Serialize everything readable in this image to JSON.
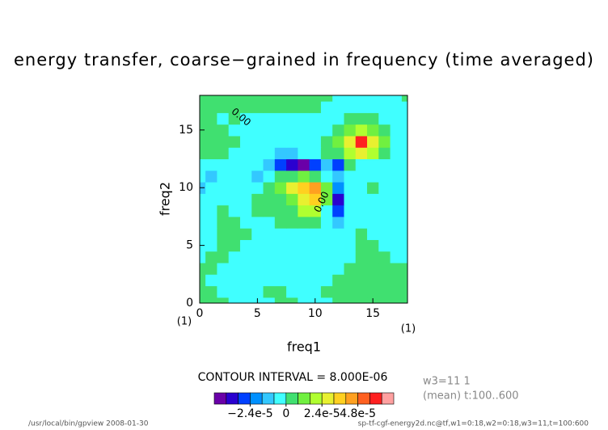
{
  "chart_data": {
    "type": "contour",
    "title": "energy transfer, coarse−grained in frequency (time averaged)",
    "xlabel": "freq1",
    "ylabel": "freq2",
    "x_units": "(1)",
    "y_units": "(1)",
    "x": [
      0,
      1,
      2,
      3,
      4,
      5,
      6,
      7,
      8,
      9,
      10,
      11,
      12,
      13,
      14,
      15,
      16,
      17,
      18
    ],
    "y": [
      0,
      1,
      2,
      3,
      4,
      5,
      6,
      7,
      8,
      9,
      10,
      11,
      12,
      13,
      14,
      15,
      16,
      17,
      18
    ],
    "xlim": [
      0,
      18
    ],
    "ylim": [
      0,
      18
    ],
    "xticks": [
      0,
      5,
      10,
      15
    ],
    "yticks": [
      0,
      5,
      10,
      15
    ],
    "z": [
      [
        4e-06,
        4e-06,
        4e-06,
        -4e-06,
        -4e-06,
        -4e-06,
        -4e-06,
        4e-06,
        4e-06,
        -4e-06,
        -4e-06,
        -4e-06,
        4e-06,
        4e-06,
        4e-06,
        4e-06,
        4e-06,
        4e-06,
        4e-06
      ],
      [
        4e-06,
        4e-06,
        -4e-06,
        -4e-06,
        -4e-06,
        -4e-06,
        4e-06,
        4e-06,
        -4e-06,
        -4e-06,
        -4e-06,
        4e-06,
        4e-06,
        4e-06,
        4e-06,
        4e-06,
        4e-06,
        4e-06,
        4e-06
      ],
      [
        4e-06,
        -4e-06,
        -4e-06,
        -4e-06,
        -4e-06,
        -4e-06,
        -4e-06,
        -4e-06,
        -4e-06,
        -4e-06,
        -4e-06,
        -4e-06,
        4e-06,
        4e-06,
        4e-06,
        4e-06,
        4e-06,
        4e-06,
        4e-06
      ],
      [
        4e-06,
        4e-06,
        -4e-06,
        -4e-06,
        -4e-06,
        -4e-06,
        -4e-06,
        -4e-06,
        -4e-06,
        -4e-06,
        -4e-06,
        -4e-06,
        -4e-06,
        4e-06,
        4e-06,
        4e-06,
        4e-06,
        4e-06,
        4e-06
      ],
      [
        -4e-06,
        4e-06,
        4e-06,
        -4e-06,
        -4e-06,
        -4e-06,
        -4e-06,
        -4e-06,
        -4e-06,
        -4e-06,
        -4e-06,
        -4e-06,
        -4e-06,
        -4e-06,
        4e-06,
        4e-06,
        4e-06,
        -4e-06,
        -4e-06
      ],
      [
        -4e-06,
        -4e-06,
        4e-06,
        4e-06,
        -4e-06,
        -4e-06,
        -4e-06,
        -4e-06,
        -4e-06,
        -4e-06,
        -4e-06,
        -4e-06,
        -4e-06,
        -4e-06,
        4e-06,
        4e-06,
        -4e-06,
        -4e-06,
        -4e-06
      ],
      [
        -4e-06,
        -4e-06,
        4e-06,
        4e-06,
        4e-06,
        -4e-06,
        -4e-06,
        -4e-06,
        -4e-06,
        -4e-06,
        -4e-06,
        -4e-06,
        -4e-06,
        -4e-06,
        4e-06,
        -4e-06,
        -4e-06,
        -4e-06,
        -4e-06
      ],
      [
        -4e-06,
        -4e-06,
        4e-06,
        4e-06,
        -4e-06,
        -4e-06,
        -4e-06,
        4e-06,
        4e-06,
        4e-06,
        4e-06,
        -4e-06,
        -1.2e-05,
        -4e-06,
        -4e-06,
        -4e-06,
        -4e-06,
        -4e-06,
        -4e-06
      ],
      [
        -4e-06,
        -4e-06,
        4e-06,
        -4e-06,
        -4e-06,
        4e-06,
        4e-06,
        4e-06,
        4e-06,
        2e-05,
        2.2e-05,
        -4e-06,
        -2.8e-05,
        -4e-06,
        -4e-06,
        -4e-06,
        -4e-06,
        -4e-06,
        -4e-06
      ],
      [
        -4e-06,
        -4e-06,
        -4e-06,
        -4e-06,
        -4e-06,
        4e-06,
        4e-06,
        4e-06,
        1.4e-05,
        3e-05,
        3.8e-05,
        1e-05,
        -3.6e-05,
        -4e-06,
        -4e-06,
        -4e-06,
        -4e-06,
        -4e-06,
        -4e-06
      ],
      [
        -1.2e-05,
        -4e-06,
        -4e-06,
        -4e-06,
        -4e-06,
        -4e-06,
        4e-06,
        1.2e-05,
        2.8e-05,
        3.5e-05,
        4.4e-05,
        1.2e-05,
        -2e-05,
        -4e-06,
        -4e-06,
        4e-06,
        -4e-06,
        -4e-06,
        -4e-06
      ],
      [
        -4e-06,
        -1.2e-05,
        -4e-06,
        -4e-06,
        -4e-06,
        -1.2e-05,
        -4e-06,
        4e-06,
        4e-06,
        1.2e-05,
        4e-06,
        -4e-06,
        -1.6e-05,
        -4e-06,
        -4e-06,
        -4e-06,
        -4e-06,
        -4e-06,
        -4e-06
      ],
      [
        -4e-06,
        -4e-06,
        -4e-06,
        -4e-06,
        -4e-06,
        -4e-06,
        -1.2e-05,
        -2.8e-05,
        -3.6e-05,
        -4.2e-05,
        -2.8e-05,
        -1.2e-05,
        -3e-05,
        4e-06,
        -4e-06,
        -4e-06,
        -4e-06,
        -4e-06,
        -4e-06
      ],
      [
        4e-06,
        4e-06,
        4e-06,
        -4e-06,
        -4e-06,
        -4e-06,
        -4e-06,
        -1.2e-05,
        -1.2e-05,
        -4e-06,
        -4e-06,
        4e-06,
        4e-06,
        2.2e-05,
        3e-05,
        1.6e-05,
        4e-06,
        -4e-06,
        -4e-06
      ],
      [
        4e-06,
        4e-06,
        4e-06,
        4e-06,
        -4e-06,
        -4e-06,
        -4e-06,
        -4e-06,
        -4e-06,
        -4e-06,
        -4e-06,
        4e-06,
        1.2e-05,
        3e-05,
        5.8e-05,
        2.4e-05,
        1.2e-05,
        -4e-06,
        -4e-06
      ],
      [
        4e-06,
        4e-06,
        4e-06,
        -4e-06,
        -4e-06,
        -4e-06,
        -4e-06,
        -4e-06,
        -4e-06,
        -4e-06,
        -4e-06,
        -4e-06,
        4e-06,
        1.2e-05,
        2e-05,
        1.2e-05,
        4e-06,
        -4e-06,
        -4e-06
      ],
      [
        4e-06,
        4e-06,
        -4e-06,
        4e-06,
        -4e-06,
        -4e-06,
        -4e-06,
        -4e-06,
        -4e-06,
        -4e-06,
        -4e-06,
        -4e-06,
        -4e-06,
        4e-06,
        4e-06,
        4e-06,
        -4e-06,
        -4e-06,
        -4e-06
      ],
      [
        4e-06,
        4e-06,
        4e-06,
        4e-06,
        4e-06,
        4e-06,
        4e-06,
        4e-06,
        4e-06,
        4e-06,
        4e-06,
        -4e-06,
        -4e-06,
        -4e-06,
        -4e-06,
        -4e-06,
        -4e-06,
        -4e-06,
        -4e-06
      ],
      [
        4e-06,
        4e-06,
        4e-06,
        4e-06,
        4e-06,
        4e-06,
        4e-06,
        4e-06,
        4e-06,
        4e-06,
        4e-06,
        4e-06,
        -4e-06,
        -4e-06,
        -4e-06,
        -4e-06,
        -4e-06,
        -4e-06,
        4e-06
      ]
    ],
    "levels": [
      -4.8e-05,
      -4e-05,
      -3.2e-05,
      -2.4e-05,
      -1.6e-05,
      -8e-06,
      0,
      8e-06,
      1.6e-05,
      2.4e-05,
      3.2e-05,
      4e-05,
      4.8e-05,
      5.6e-05,
      6.4e-05,
      7.2e-05
    ],
    "colors": [
      "#6a00a8",
      "#2a00d0",
      "#0040ff",
      "#0090ff",
      "#33c8ff",
      "#40ffff",
      "#40e070",
      "#70f040",
      "#b0ff30",
      "#e8f030",
      "#ffd020",
      "#ffa020",
      "#ff6020",
      "#ff2020",
      "#ffa0a0"
    ],
    "colorbar_ticks": [
      {
        "value": -2.4e-05,
        "label": "−2.4e-5"
      },
      0,
      {
        "value": 2.4e-05,
        "label": "2.4e-5"
      },
      {
        "value": 4.8e-05,
        "label": "4.8e-5"
      }
    ],
    "contour_interval_label": "CONTOUR INTERVAL = 8.000E-06",
    "contour_labels": [
      "0.00",
      "0.00"
    ],
    "annotations": [
      "w3=11 1",
      "(mean) t:100..600"
    ],
    "footer_left": "/usr/local/bin/gpview  2008-01-30",
    "footer_right": "sp-tf-cgf-energy2d.nc@tf,w1=0:18,w2=0:18,w3=11,t=100:600"
  }
}
